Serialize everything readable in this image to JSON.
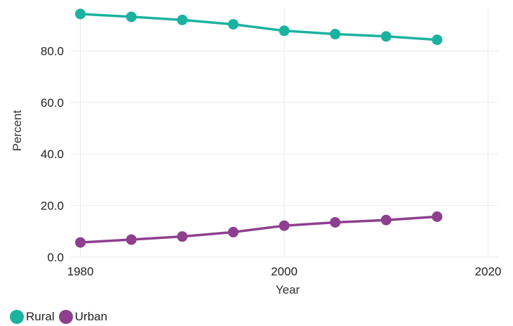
{
  "chart_data": {
    "type": "line",
    "xlabel": "Year",
    "ylabel": "Percent",
    "xlim": [
      1979,
      2021
    ],
    "ylim": [
      0,
      97
    ],
    "x_ticks": [
      1980,
      2000,
      2020
    ],
    "x_tick_labels": [
      "1980",
      "2000",
      "2020"
    ],
    "y_ticks": [
      0,
      20,
      40,
      60,
      80
    ],
    "y_tick_labels": [
      "0.0",
      "20.0",
      "40.0",
      "60.0",
      "80.0"
    ],
    "grid": true,
    "legend_position": "bottom-left",
    "x": [
      1980,
      1985,
      1990,
      1995,
      2000,
      2005,
      2010,
      2015
    ],
    "series": [
      {
        "name": "Rural",
        "color": "#1bb3a0",
        "values": [
          94.3,
          93.2,
          92.0,
          90.3,
          87.8,
          86.5,
          85.6,
          84.3
        ]
      },
      {
        "name": "Urban",
        "color": "#8e3f8e",
        "values": [
          5.7,
          6.8,
          8.0,
          9.7,
          12.2,
          13.5,
          14.4,
          15.7
        ]
      }
    ]
  }
}
